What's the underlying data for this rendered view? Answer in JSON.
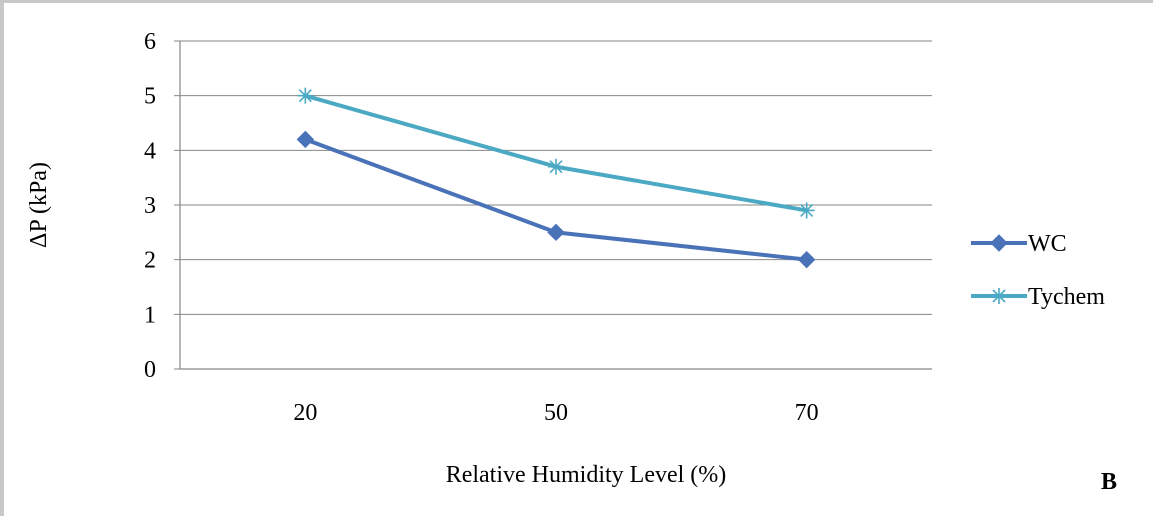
{
  "chart_data": {
    "type": "line",
    "categories": [
      "20",
      "50",
      "70"
    ],
    "series": [
      {
        "name": "WC",
        "values": [
          4.2,
          2.5,
          2.0
        ],
        "color": "#4a72b8",
        "marker": "diamond"
      },
      {
        "name": "Tychem",
        "values": [
          5.0,
          3.7,
          2.9
        ],
        "color": "#4ba9c4",
        "marker": "asterisk"
      }
    ],
    "title": "",
    "xlabel": "Relative Humidity Level (%)",
    "ylabel": "ΔP (kPa)",
    "ylim": [
      0,
      6
    ],
    "yticks": [
      "0",
      "1",
      "2",
      "3",
      "4",
      "5",
      "6"
    ],
    "grid": true,
    "legend": "right",
    "panel_label": "B"
  }
}
